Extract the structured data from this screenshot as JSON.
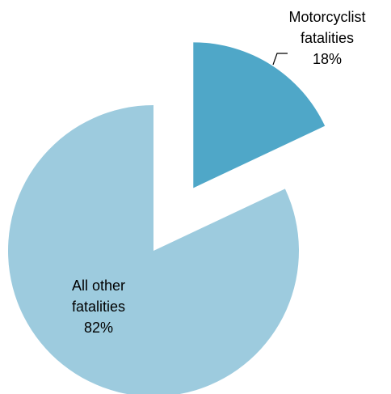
{
  "chart_data": {
    "type": "pie",
    "categories": [
      "Motorcyclist fatalities",
      "All other fatalities"
    ],
    "values": [
      18,
      82
    ],
    "value_labels": [
      "18%",
      "82%"
    ],
    "colors": [
      "#4fa7c8",
      "#9dcbde"
    ]
  }
}
